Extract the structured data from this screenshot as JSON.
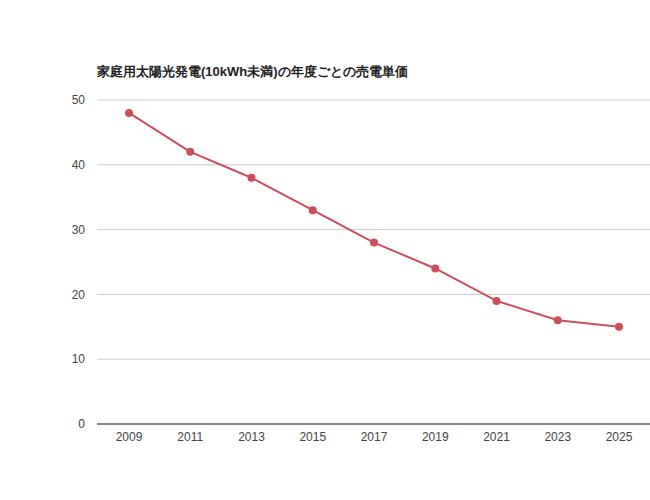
{
  "chart_data": {
    "type": "line",
    "title": "家庭用太陽光発電(10kWh未満)の年度ごとの売電単価",
    "categories": [
      "2009",
      "2011",
      "2013",
      "2015",
      "2017",
      "2019",
      "2021",
      "2023",
      "2025"
    ],
    "values": [
      48,
      42,
      38,
      33,
      28,
      24,
      19,
      16,
      15
    ],
    "color": "#cc4e5c",
    "marker": "circle",
    "line_style": "solid",
    "ylim": [
      0,
      50
    ],
    "yticks": [
      0,
      10,
      20,
      30,
      40,
      50
    ],
    "grid": true
  }
}
